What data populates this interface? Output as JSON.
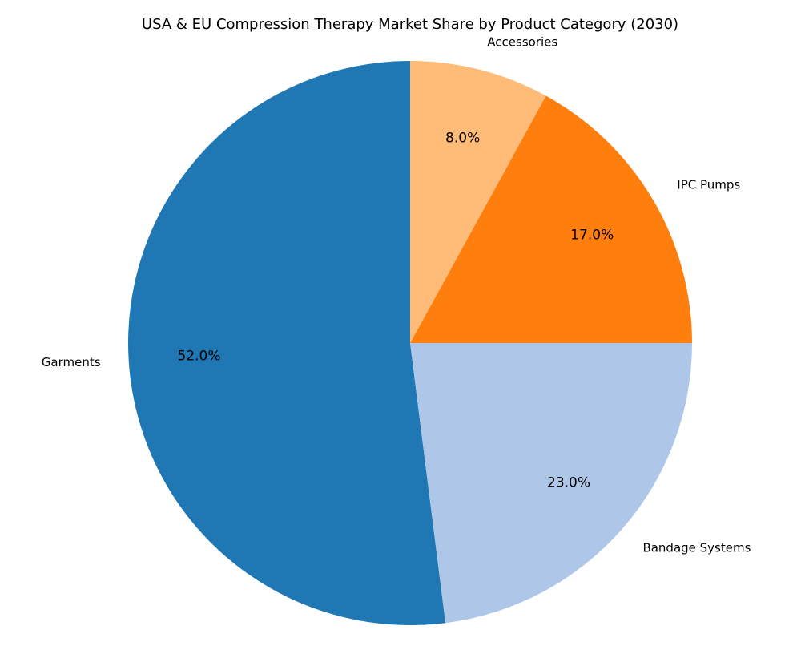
{
  "chart_data": {
    "type": "pie",
    "title": "USA & EU Compression Therapy Market Share by Product Category (2030)",
    "categories": [
      "Garments",
      "Bandage Systems",
      "IPC Pumps",
      "Accessories"
    ],
    "values": [
      52.0,
      23.0,
      17.0,
      8.0
    ],
    "value_labels": [
      "52.0%",
      "23.0%",
      "17.0%",
      "8.0%"
    ],
    "colors": [
      "#1f77b4",
      "#aec7e8",
      "#ff7f0e",
      "#ffbb78"
    ],
    "start_angle_deg": 90,
    "direction": "counterclockwise",
    "legend": "none"
  }
}
